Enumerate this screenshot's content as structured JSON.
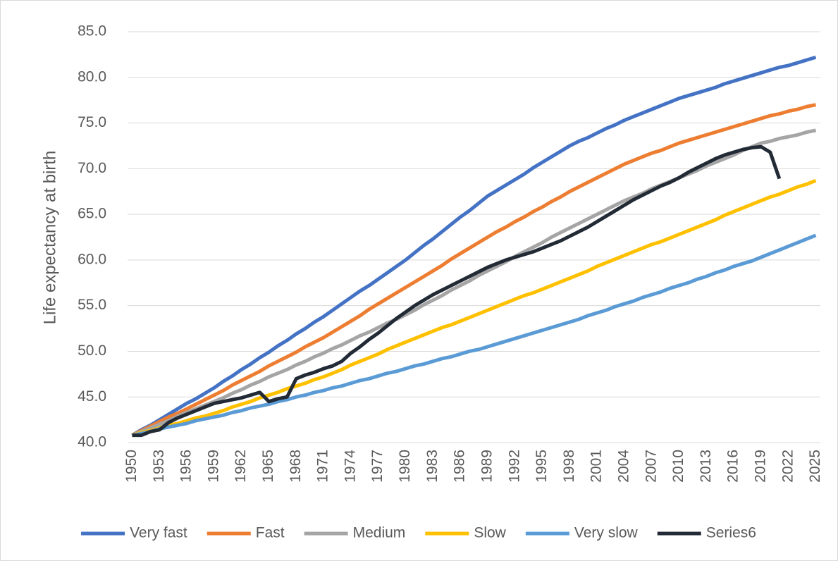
{
  "chart_data": {
    "type": "line",
    "y_label": "Life expectancy at birth",
    "categories": [
      "1950",
      null,
      null,
      "1953",
      null,
      null,
      "1956",
      null,
      null,
      "1959",
      null,
      null,
      "1962",
      null,
      null,
      "1965",
      null,
      null,
      "1968",
      null,
      null,
      "1971",
      null,
      null,
      "1974",
      null,
      null,
      "1977",
      null,
      null,
      "1980",
      null,
      null,
      "1983",
      null,
      null,
      "1986",
      null,
      null,
      "1989",
      null,
      null,
      "1992",
      null,
      null,
      "1995",
      null,
      null,
      "1998",
      null,
      null,
      "2001",
      null,
      null,
      "2004",
      null,
      null,
      "2007",
      null,
      null,
      "2010",
      null,
      null,
      "2013",
      null,
      null,
      "2016",
      null,
      null,
      "2019",
      null,
      null,
      "2022",
      null,
      null,
      "2025"
    ],
    "ylim": [
      40,
      85
    ],
    "yticks": [
      {
        "value": 40,
        "label": "40.0"
      },
      {
        "value": 45,
        "label": "45.0"
      },
      {
        "value": 50,
        "label": "50.0"
      },
      {
        "value": 55,
        "label": "55.0"
      },
      {
        "value": 60,
        "label": "60.0"
      },
      {
        "value": 65,
        "label": "65.0"
      },
      {
        "value": 70,
        "label": "70.0"
      },
      {
        "value": 75,
        "label": "75.0"
      },
      {
        "value": 80,
        "label": "80.0"
      },
      {
        "value": 85,
        "label": "85.0"
      }
    ],
    "grid": true,
    "legend": "bottom",
    "series": [
      {
        "name": "Very fast",
        "color": "#4472c4",
        "values": [
          40.8,
          41.4,
          41.9,
          42.5,
          43.1,
          43.7,
          44.3,
          44.8,
          45.4,
          46.0,
          46.7,
          47.3,
          48.0,
          48.6,
          49.3,
          49.9,
          50.6,
          51.2,
          51.9,
          52.5,
          53.2,
          53.8,
          54.5,
          55.2,
          55.9,
          56.6,
          57.2,
          57.9,
          58.6,
          59.3,
          60.0,
          60.8,
          61.6,
          62.3,
          63.1,
          63.9,
          64.7,
          65.4,
          66.2,
          67.0,
          67.6,
          68.2,
          68.8,
          69.4,
          70.1,
          70.7,
          71.3,
          71.9,
          72.5,
          73.0,
          73.4,
          73.9,
          74.4,
          74.8,
          75.3,
          75.7,
          76.1,
          76.5,
          76.9,
          77.3,
          77.7,
          78.0,
          78.3,
          78.6,
          78.9,
          79.3,
          79.6,
          79.9,
          80.2,
          80.5,
          80.8,
          81.1,
          81.3,
          81.6,
          81.9,
          82.2
        ]
      },
      {
        "name": "Fast",
        "color": "#ed7d31",
        "values": [
          40.8,
          41.3,
          41.8,
          42.3,
          42.8,
          43.2,
          43.7,
          44.2,
          44.7,
          45.2,
          45.7,
          46.3,
          46.8,
          47.3,
          47.8,
          48.4,
          48.9,
          49.4,
          49.9,
          50.5,
          51.0,
          51.5,
          52.1,
          52.7,
          53.3,
          53.9,
          54.6,
          55.2,
          55.8,
          56.4,
          57.0,
          57.6,
          58.2,
          58.8,
          59.4,
          60.1,
          60.7,
          61.3,
          61.9,
          62.5,
          63.1,
          63.6,
          64.2,
          64.7,
          65.3,
          65.8,
          66.4,
          66.9,
          67.5,
          68.0,
          68.5,
          69.0,
          69.5,
          70.0,
          70.5,
          70.9,
          71.3,
          71.7,
          72.0,
          72.4,
          72.8,
          73.1,
          73.4,
          73.7,
          74.0,
          74.3,
          74.6,
          74.9,
          75.2,
          75.5,
          75.8,
          76.0,
          76.3,
          76.5,
          76.8,
          77.0
        ]
      },
      {
        "name": "Medium",
        "color": "#a5a5a5",
        "values": [
          40.8,
          41.2,
          41.6,
          42.0,
          42.4,
          42.9,
          43.3,
          43.7,
          44.1,
          44.5,
          44.9,
          45.4,
          45.8,
          46.3,
          46.7,
          47.2,
          47.6,
          48.0,
          48.5,
          48.9,
          49.4,
          49.8,
          50.3,
          50.7,
          51.2,
          51.7,
          52.1,
          52.6,
          53.1,
          53.5,
          54.0,
          54.5,
          55.1,
          55.6,
          56.1,
          56.7,
          57.2,
          57.7,
          58.3,
          58.8,
          59.3,
          59.8,
          60.4,
          60.9,
          61.4,
          61.9,
          62.5,
          63.0,
          63.5,
          64.0,
          64.5,
          65.0,
          65.5,
          66.0,
          66.5,
          66.9,
          67.3,
          67.8,
          68.2,
          68.6,
          69.0,
          69.4,
          69.8,
          70.3,
          70.7,
          71.1,
          71.5,
          72.0,
          72.4,
          72.8,
          73.0,
          73.3,
          73.5,
          73.7,
          74.0,
          74.2
        ]
      },
      {
        "name": "Slow",
        "color": "#ffc000",
        "values": [
          40.8,
          41.1,
          41.3,
          41.6,
          41.9,
          42.1,
          42.4,
          42.7,
          42.9,
          43.2,
          43.5,
          43.9,
          44.2,
          44.5,
          44.9,
          45.2,
          45.5,
          45.9,
          46.2,
          46.5,
          46.9,
          47.2,
          47.6,
          48.0,
          48.5,
          48.9,
          49.3,
          49.7,
          50.2,
          50.6,
          51.0,
          51.4,
          51.8,
          52.2,
          52.6,
          52.9,
          53.3,
          53.7,
          54.1,
          54.5,
          54.9,
          55.3,
          55.7,
          56.1,
          56.4,
          56.8,
          57.2,
          57.6,
          58.0,
          58.4,
          58.8,
          59.3,
          59.7,
          60.1,
          60.5,
          60.9,
          61.3,
          61.7,
          62.0,
          62.4,
          62.8,
          63.2,
          63.6,
          64.0,
          64.4,
          64.9,
          65.3,
          65.7,
          66.1,
          66.5,
          66.9,
          67.2,
          67.6,
          68.0,
          68.3,
          68.7
        ]
      },
      {
        "name": "Very slow",
        "color": "#5b9bd5",
        "values": [
          40.8,
          41.0,
          41.2,
          41.5,
          41.7,
          41.9,
          42.1,
          42.4,
          42.6,
          42.8,
          43.0,
          43.3,
          43.5,
          43.8,
          44.0,
          44.2,
          44.5,
          44.7,
          45.0,
          45.2,
          45.5,
          45.7,
          46.0,
          46.2,
          46.5,
          46.8,
          47.0,
          47.3,
          47.6,
          47.8,
          48.1,
          48.4,
          48.6,
          48.9,
          49.2,
          49.4,
          49.7,
          50.0,
          50.2,
          50.5,
          50.8,
          51.1,
          51.4,
          51.7,
          52.0,
          52.3,
          52.6,
          52.9,
          53.2,
          53.5,
          53.9,
          54.2,
          54.5,
          54.9,
          55.2,
          55.5,
          55.9,
          56.2,
          56.5,
          56.9,
          57.2,
          57.5,
          57.9,
          58.2,
          58.6,
          58.9,
          59.3,
          59.6,
          59.9,
          60.3,
          60.7,
          61.1,
          61.5,
          61.9,
          62.3,
          62.7
        ]
      },
      {
        "name": "Series6",
        "color": "#222a35",
        "values": [
          40.8,
          40.8,
          41.2,
          41.4,
          42.2,
          42.7,
          43.1,
          43.5,
          43.9,
          44.3,
          44.5,
          44.7,
          44.9,
          45.2,
          45.5,
          44.5,
          44.8,
          45.0,
          47.0,
          47.4,
          47.7,
          48.1,
          48.4,
          48.9,
          49.8,
          50.5,
          51.3,
          52.0,
          52.8,
          53.6,
          54.3,
          55.0,
          55.6,
          56.2,
          56.7,
          57.2,
          57.7,
          58.2,
          58.7,
          59.2,
          59.6,
          60.0,
          60.3,
          60.6,
          60.9,
          61.3,
          61.7,
          62.1,
          62.6,
          63.1,
          63.6,
          64.2,
          64.8,
          65.4,
          66.0,
          66.6,
          67.1,
          67.6,
          68.1,
          68.5,
          69.0,
          69.6,
          70.1,
          70.6,
          71.1,
          71.5,
          71.8,
          72.1,
          72.3,
          72.4,
          71.8,
          68.9,
          null,
          null,
          null,
          null
        ]
      }
    ]
  }
}
